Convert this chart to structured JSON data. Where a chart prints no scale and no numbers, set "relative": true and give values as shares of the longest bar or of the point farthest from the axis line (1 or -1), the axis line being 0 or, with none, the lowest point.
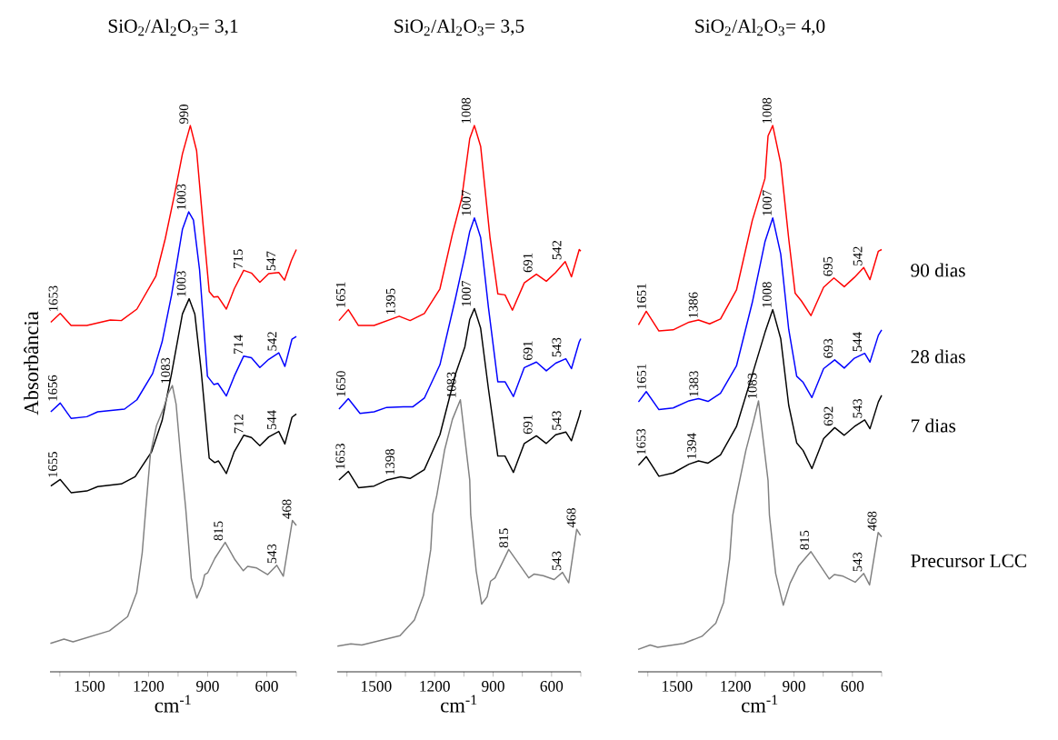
{
  "chart_data": [
    {
      "type": "line",
      "title": "SiO$_{2}$/Al$_{2}$O$_{3}$= 3,1",
      "xlabel": "cm$^{-1}$",
      "ylabel": "Absorbância",
      "relative": true,
      "xlim": [
        1700,
        450
      ],
      "xticks": [
        {
          "value": 1650,
          "label": null
        },
        1500,
        {
          "value": 1350,
          "label": null
        },
        1200,
        {
          "value": 1050,
          "label": null
        },
        900,
        {
          "value": 750,
          "label": null
        },
        600,
        {
          "value": 450,
          "label": null
        }
      ],
      "series": [
        {
          "color": "#ff0000",
          "x": [
            1696,
            1648,
            1593,
            1513,
            1394,
            1338,
            1259,
            1163,
            1115,
            1068,
            1028,
            988,
            956,
            924,
            892,
            869,
            848,
            805,
            765,
            717,
            678,
            635,
            590,
            539,
            510,
            475,
            450
          ],
          "values": [
            0.64,
            0.656,
            0.634,
            0.634,
            0.644,
            0.643,
            0.664,
            0.724,
            0.793,
            0.874,
            0.948,
            1.0,
            0.954,
            0.822,
            0.696,
            0.686,
            0.687,
            0.664,
            0.701,
            0.735,
            0.73,
            0.713,
            0.729,
            0.731,
            0.717,
            0.753,
            0.773
          ]
        },
        {
          "color": "#0000ff",
          "x": [
            1696,
            1648,
            1593,
            1513,
            1458,
            1322,
            1259,
            1179,
            1131,
            1083,
            1028,
            996,
            972,
            941,
            901,
            869,
            848,
            805,
            765,
            717,
            678,
            635,
            590,
            539,
            508,
            472,
            450
          ],
          "values": [
            0.476,
            0.492,
            0.464,
            0.467,
            0.476,
            0.481,
            0.498,
            0.546,
            0.604,
            0.69,
            0.81,
            0.842,
            0.827,
            0.736,
            0.541,
            0.526,
            0.528,
            0.505,
            0.541,
            0.578,
            0.575,
            0.557,
            0.572,
            0.584,
            0.559,
            0.609,
            0.614
          ]
        },
        {
          "color": "#000000",
          "x": [
            1696,
            1648,
            1593,
            1513,
            1458,
            1338,
            1268,
            1184,
            1131,
            1083,
            1028,
            994,
            965,
            933,
            892,
            864,
            845,
            805,
            765,
            717,
            678,
            635,
            590,
            539,
            508,
            472,
            450
          ],
          "values": [
            0.34,
            0.352,
            0.328,
            0.331,
            0.339,
            0.344,
            0.357,
            0.403,
            0.46,
            0.546,
            0.655,
            0.683,
            0.655,
            0.552,
            0.391,
            0.383,
            0.386,
            0.363,
            0.403,
            0.433,
            0.429,
            0.414,
            0.43,
            0.44,
            0.417,
            0.466,
            0.472
          ]
        },
        {
          "color": "#808080",
          "x": [
            1698,
            1629,
            1583,
            1398,
            1306,
            1260,
            1232,
            1214,
            1190,
            1160,
            1123,
            1100,
            1079,
            1060,
            1036,
            1011,
            983,
            955,
            928,
            915,
            900,
            863,
            811,
            761,
            719,
            697,
            651,
            595,
            549,
            516,
            470,
            450
          ],
          "values": [
            0.052,
            0.06,
            0.055,
            0.075,
            0.101,
            0.145,
            0.218,
            0.298,
            0.4,
            0.45,
            0.483,
            0.51,
            0.524,
            0.49,
            0.391,
            0.298,
            0.171,
            0.135,
            0.158,
            0.178,
            0.181,
            0.208,
            0.237,
            0.205,
            0.185,
            0.193,
            0.19,
            0.178,
            0.195,
            0.175,
            0.277,
            0.268
          ]
        }
      ],
      "annotations": [
        {
          "text": "1653",
          "x": 1653,
          "y": 0.656
        },
        {
          "text": "990",
          "x": 990,
          "y": 1.0
        },
        {
          "text": "715",
          "x": 715,
          "y": 0.735
        },
        {
          "text": "547",
          "x": 547,
          "y": 0.731
        },
        {
          "text": "1656",
          "x": 1656,
          "y": 0.492
        },
        {
          "text": "1003",
          "x": 1003,
          "y": 0.842
        },
        {
          "text": "714",
          "x": 714,
          "y": 0.578
        },
        {
          "text": "542",
          "x": 542,
          "y": 0.584
        },
        {
          "text": "1655",
          "x": 1655,
          "y": 0.352
        },
        {
          "text": "1003",
          "x": 1003,
          "y": 0.683
        },
        {
          "text": "712",
          "x": 712,
          "y": 0.433
        },
        {
          "text": "544",
          "x": 544,
          "y": 0.44
        },
        {
          "text": "1083",
          "x": 1083,
          "y": 0.524
        },
        {
          "text": "815",
          "x": 815,
          "y": 0.237
        },
        {
          "text": "543",
          "x": 543,
          "y": 0.195
        },
        {
          "text": "468",
          "x": 468,
          "y": 0.277
        }
      ]
    },
    {
      "type": "line",
      "title": "SiO$_{2}$/Al$_{2}$O$_{3}$= 3,5",
      "xlabel": "cm$^{-1}$",
      "relative": true,
      "xlim": [
        1700,
        450
      ],
      "xticks": [
        {
          "value": 1650,
          "label": null
        },
        1500,
        {
          "value": 1350,
          "label": null
        },
        1200,
        {
          "value": 1050,
          "label": null
        },
        900,
        {
          "value": 750,
          "label": null
        },
        600,
        {
          "value": 450,
          "label": null
        }
      ],
      "series": [
        {
          "color": "#ff0000",
          "x": [
            1691,
            1643,
            1591,
            1511,
            1382,
            1326,
            1253,
            1173,
            1109,
            1061,
            1020,
            996,
            964,
            916,
            876,
            839,
            801,
            740,
            678,
            627,
            579,
            530,
            498,
            458,
            450
          ],
          "values": [
            0.643,
            0.663,
            0.634,
            0.634,
            0.651,
            0.643,
            0.656,
            0.701,
            0.801,
            0.867,
            0.976,
            1.0,
            0.962,
            0.795,
            0.692,
            0.69,
            0.662,
            0.712,
            0.728,
            0.715,
            0.731,
            0.751,
            0.723,
            0.773,
            0.77
          ]
        },
        {
          "color": "#0000ff",
          "x": [
            1691,
            1643,
            1583,
            1511,
            1446,
            1361,
            1313,
            1253,
            1173,
            1093,
            1045,
            1020,
            996,
            964,
            924,
            876,
            839,
            796,
            740,
            678,
            627,
            579,
            527,
            498,
            458,
            450
          ],
          "values": [
            0.481,
            0.5,
            0.473,
            0.476,
            0.484,
            0.485,
            0.485,
            0.501,
            0.562,
            0.684,
            0.762,
            0.806,
            0.831,
            0.795,
            0.667,
            0.531,
            0.531,
            0.504,
            0.557,
            0.567,
            0.551,
            0.565,
            0.573,
            0.555,
            0.604,
            0.61
          ]
        },
        {
          "color": "#000000",
          "x": [
            1691,
            1643,
            1591,
            1511,
            1446,
            1374,
            1326,
            1253,
            1173,
            1093,
            1045,
            1020,
            996,
            964,
            924,
            876,
            839,
            796,
            740,
            678,
            627,
            579,
            527,
            498,
            458,
            450
          ],
          "values": [
            0.351,
            0.367,
            0.337,
            0.34,
            0.351,
            0.357,
            0.354,
            0.37,
            0.434,
            0.545,
            0.595,
            0.645,
            0.665,
            0.629,
            0.518,
            0.395,
            0.395,
            0.365,
            0.418,
            0.432,
            0.418,
            0.434,
            0.439,
            0.423,
            0.468,
            0.479
          ]
        },
        {
          "color": "#808080",
          "x": [
            1699,
            1630,
            1574,
            1378,
            1304,
            1257,
            1220,
            1210,
            1189,
            1149,
            1109,
            1068,
            1020,
            1015,
            987,
            959,
            931,
            913,
            890,
            820,
            717,
            689,
            643,
            587,
            544,
            512,
            471,
            452
          ],
          "values": [
            0.047,
            0.051,
            0.049,
            0.066,
            0.095,
            0.14,
            0.224,
            0.288,
            0.323,
            0.406,
            0.462,
            0.498,
            0.351,
            0.288,
            0.185,
            0.124,
            0.137,
            0.166,
            0.172,
            0.224,
            0.172,
            0.179,
            0.176,
            0.169,
            0.182,
            0.163,
            0.261,
            0.25
          ]
        }
      ],
      "annotations": [
        {
          "text": "1651",
          "x": 1651,
          "y": 0.663
        },
        {
          "text": "1395",
          "x": 1395,
          "y": 0.651
        },
        {
          "text": "1008",
          "x": 1008,
          "y": 1.0
        },
        {
          "text": "691",
          "x": 691,
          "y": 0.728
        },
        {
          "text": "542",
          "x": 542,
          "y": 0.751
        },
        {
          "text": "1650",
          "x": 1650,
          "y": 0.5
        },
        {
          "text": "1007",
          "x": 1007,
          "y": 0.831
        },
        {
          "text": "691",
          "x": 691,
          "y": 0.567
        },
        {
          "text": "543",
          "x": 543,
          "y": 0.573
        },
        {
          "text": "1653",
          "x": 1653,
          "y": 0.367
        },
        {
          "text": "1398",
          "x": 1398,
          "y": 0.357
        },
        {
          "text": "1007",
          "x": 1007,
          "y": 0.665
        },
        {
          "text": "691",
          "x": 691,
          "y": 0.432
        },
        {
          "text": "543",
          "x": 543,
          "y": 0.439
        },
        {
          "text": "1083",
          "x": 1083,
          "y": 0.498
        },
        {
          "text": "815",
          "x": 815,
          "y": 0.224
        },
        {
          "text": "543",
          "x": 543,
          "y": 0.182
        },
        {
          "text": "468",
          "x": 468,
          "y": 0.261
        }
      ]
    },
    {
      "type": "line",
      "title": "SiO$_{2}$/Al$_{2}$O$_{3}$= 4,0",
      "xlabel": "cm$^{-1}$",
      "relative": true,
      "xlim": [
        1700,
        450
      ],
      "xticks": [
        {
          "value": 1650,
          "label": null
        },
        1500,
        {
          "value": 1350,
          "label": null
        },
        1200,
        {
          "value": 1050,
          "label": null
        },
        900,
        {
          "value": 750,
          "label": null
        },
        600,
        {
          "value": 450,
          "label": null
        }
      ],
      "series": [
        {
          "name": "90 dias",
          "color": "#ff0000",
          "x": [
            1698,
            1658,
            1593,
            1520,
            1439,
            1390,
            1333,
            1277,
            1195,
            1114,
            1049,
            1033,
            1009,
            968,
            927,
            894,
            862,
            813,
            748,
            695,
            642,
            590,
            542,
            510,
            467,
            450
          ],
          "values": [
            0.635,
            0.66,
            0.624,
            0.626,
            0.64,
            0.644,
            0.637,
            0.646,
            0.699,
            0.826,
            0.903,
            0.981,
            1.0,
            0.931,
            0.793,
            0.693,
            0.679,
            0.652,
            0.704,
            0.721,
            0.705,
            0.722,
            0.74,
            0.718,
            0.77,
            0.773
          ]
        },
        {
          "name": "28 dias",
          "color": "#0000ff",
          "x": [
            1698,
            1658,
            1593,
            1520,
            1439,
            1390,
            1341,
            1277,
            1195,
            1114,
            1049,
            1009,
            968,
            927,
            886,
            853,
            808,
            748,
            691,
            642,
            590,
            537,
            510,
            467,
            450
          ],
          "values": [
            0.494,
            0.513,
            0.48,
            0.483,
            0.496,
            0.5,
            0.495,
            0.51,
            0.56,
            0.676,
            0.787,
            0.831,
            0.765,
            0.627,
            0.541,
            0.53,
            0.502,
            0.555,
            0.571,
            0.556,
            0.574,
            0.583,
            0.567,
            0.616,
            0.626
          ]
        },
        {
          "name": "7 dias",
          "color": "#000000",
          "x": [
            1698,
            1658,
            1593,
            1520,
            1439,
            1390,
            1341,
            1277,
            1195,
            1114,
            1049,
            1009,
            968,
            927,
            886,
            853,
            808,
            748,
            691,
            642,
            590,
            537,
            510,
            467,
            450
          ],
          "values": [
            0.378,
            0.394,
            0.358,
            0.364,
            0.38,
            0.386,
            0.382,
            0.397,
            0.449,
            0.544,
            0.621,
            0.663,
            0.61,
            0.488,
            0.419,
            0.405,
            0.372,
            0.427,
            0.447,
            0.433,
            0.449,
            0.461,
            0.445,
            0.494,
            0.506
          ]
        },
        {
          "name": "Precursor LCC",
          "color": "#808080",
          "x": [
            1700,
            1638,
            1599,
            1466,
            1372,
            1301,
            1261,
            1230,
            1214,
            1195,
            1147,
            1106,
            1082,
            1033,
            1026,
            994,
            955,
            920,
            876,
            813,
            719,
            693,
            648,
            586,
            542,
            512,
            468,
            450
          ],
          "values": [
            0.041,
            0.049,
            0.045,
            0.052,
            0.065,
            0.089,
            0.127,
            0.207,
            0.287,
            0.322,
            0.405,
            0.461,
            0.496,
            0.35,
            0.287,
            0.18,
            0.122,
            0.162,
            0.194,
            0.22,
            0.17,
            0.178,
            0.175,
            0.164,
            0.18,
            0.159,
            0.255,
            0.247
          ]
        }
      ],
      "annotations": [
        {
          "text": "1651",
          "x": 1651,
          "y": 0.66
        },
        {
          "text": "1386",
          "x": 1386,
          "y": 0.644
        },
        {
          "text": "1008",
          "x": 1008,
          "y": 1.0
        },
        {
          "text": "695",
          "x": 695,
          "y": 0.721
        },
        {
          "text": "542",
          "x": 542,
          "y": 0.74
        },
        {
          "text": "1651",
          "x": 1651,
          "y": 0.513
        },
        {
          "text": "1383",
          "x": 1383,
          "y": 0.5
        },
        {
          "text": "1007",
          "x": 1007,
          "y": 0.831
        },
        {
          "text": "693",
          "x": 693,
          "y": 0.571
        },
        {
          "text": "544",
          "x": 544,
          "y": 0.583
        },
        {
          "text": "1653",
          "x": 1653,
          "y": 0.394
        },
        {
          "text": "1394",
          "x": 1394,
          "y": 0.386
        },
        {
          "text": "1008",
          "x": 1008,
          "y": 0.663
        },
        {
          "text": "692",
          "x": 692,
          "y": 0.447
        },
        {
          "text": "543",
          "x": 543,
          "y": 0.461
        },
        {
          "text": "1083",
          "x": 1083,
          "y": 0.496
        },
        {
          "text": "815",
          "x": 815,
          "y": 0.22
        },
        {
          "text": "543",
          "x": 543,
          "y": 0.18
        },
        {
          "text": "468",
          "x": 468,
          "y": 0.255
        }
      ]
    }
  ]
}
